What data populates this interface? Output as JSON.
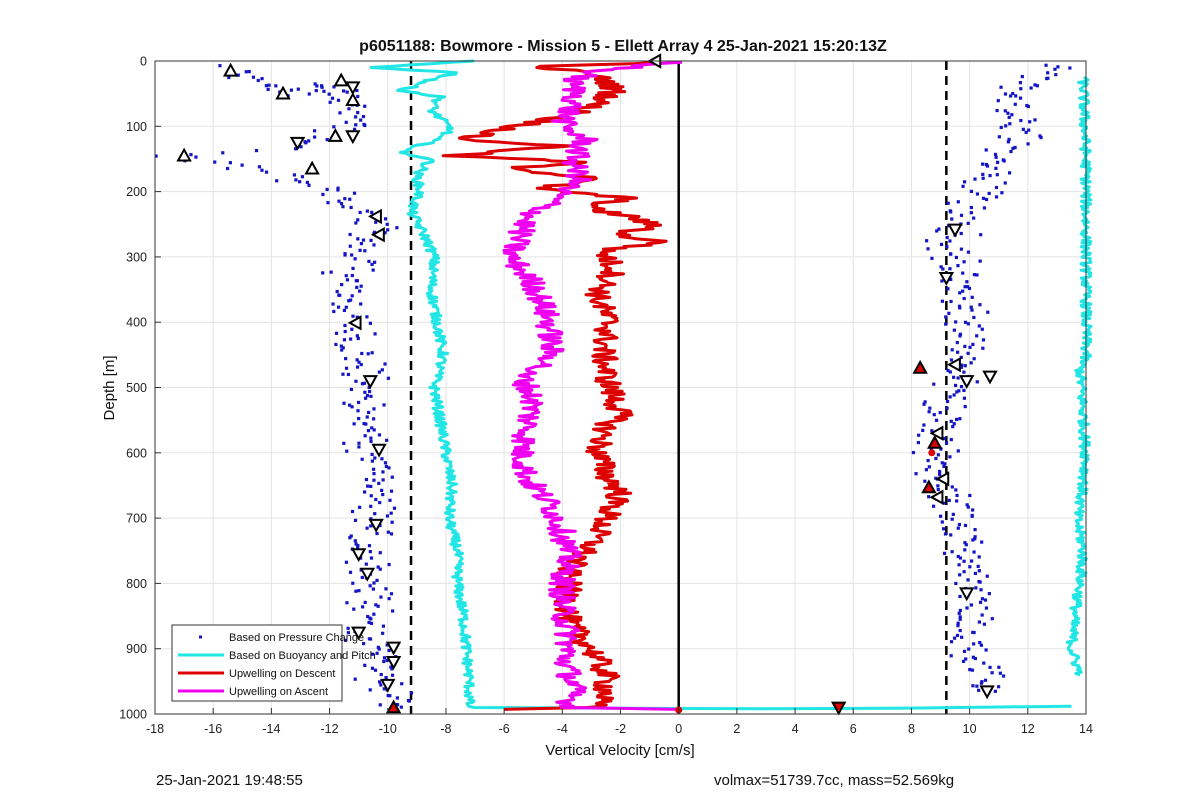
{
  "chart_data": {
    "type": "scatter",
    "title": "p6051188: Bowmore - Mission 5 - Ellett Array 4 25-Jan-2021 15:20:13Z",
    "xlabel": "Vertical Velocity [cm/s]",
    "ylabel": "Depth [m]",
    "xlim": [
      -18,
      14
    ],
    "ylim": [
      0,
      1000
    ],
    "y_reversed": true,
    "grid": true,
    "x_ticks": [
      "-18",
      "-16",
      "-14",
      "-12",
      "-10",
      "-8",
      "-6",
      "-4",
      "-2",
      "0",
      "2",
      "4",
      "6",
      "8",
      "10",
      "12",
      "14"
    ],
    "y_ticks": [
      "0",
      "100",
      "200",
      "300",
      "400",
      "500",
      "600",
      "700",
      "800",
      "900",
      "1000"
    ],
    "legend_position": "bottom-left",
    "reference_lines": [
      {
        "x": -9.2,
        "style": "dashed"
      },
      {
        "x": 0,
        "style": "solid"
      },
      {
        "x": 9.2,
        "style": "dashed"
      }
    ],
    "series": [
      {
        "name": "Based on Pressure Change",
        "style": "points",
        "color": "#1515c8",
        "descent": [
          [
            -15.6,
            10
          ],
          [
            -14.3,
            35
          ],
          [
            -13.2,
            55
          ],
          [
            -12,
            35
          ],
          [
            -11.4,
            60
          ],
          [
            -11.2,
            100
          ],
          [
            -12.8,
            130
          ],
          [
            -17.2,
            145
          ],
          [
            -16,
            150
          ],
          [
            -14.5,
            165
          ],
          [
            -13,
            180
          ],
          [
            -12,
            200
          ],
          [
            -11.2,
            225
          ],
          [
            -10.8,
            240
          ],
          [
            -10.3,
            260
          ],
          [
            -10.6,
            270
          ],
          [
            -11.2,
            300
          ],
          [
            -11.5,
            350
          ],
          [
            -11.2,
            400
          ],
          [
            -10.9,
            450
          ],
          [
            -10.8,
            500
          ],
          [
            -10.8,
            550
          ],
          [
            -10.5,
            600
          ],
          [
            -10.4,
            650
          ],
          [
            -10.5,
            700
          ],
          [
            -10.7,
            750
          ],
          [
            -10.6,
            800
          ],
          [
            -10.8,
            850
          ],
          [
            -10.6,
            900
          ],
          [
            -10.1,
            950
          ],
          [
            -9.8,
            995
          ]
        ],
        "ascent": [
          [
            12.9,
            5
          ],
          [
            12.4,
            25
          ],
          [
            11.8,
            45
          ],
          [
            11.2,
            65
          ],
          [
            11.5,
            90
          ],
          [
            11.9,
            110
          ],
          [
            11.2,
            140
          ],
          [
            10.6,
            180
          ],
          [
            10.1,
            220
          ],
          [
            9.6,
            255
          ],
          [
            9.4,
            280
          ],
          [
            9.5,
            320
          ],
          [
            9.9,
            360
          ],
          [
            9.9,
            400
          ],
          [
            9.8,
            440
          ],
          [
            9.7,
            470
          ],
          [
            9.4,
            520
          ],
          [
            9.1,
            560
          ],
          [
            8.8,
            600
          ],
          [
            9.0,
            640
          ],
          [
            9.3,
            680
          ],
          [
            9.6,
            720
          ],
          [
            9.9,
            760
          ],
          [
            10.2,
            800
          ],
          [
            10.0,
            850
          ],
          [
            10.1,
            900
          ],
          [
            10.4,
            940
          ],
          [
            10.6,
            965
          ]
        ]
      },
      {
        "name": "Based on Buoyancy and Pitch",
        "style": "line",
        "color": "#22e6e6",
        "descent": [
          [
            -7.2,
            0
          ],
          [
            -10.5,
            10
          ],
          [
            -7.6,
            18
          ],
          [
            -8.6,
            30
          ],
          [
            -9.5,
            45
          ],
          [
            -8.2,
            55
          ],
          [
            -8.5,
            75
          ],
          [
            -7.8,
            105
          ],
          [
            -8.6,
            125
          ],
          [
            -9.6,
            140
          ],
          [
            -8.5,
            150
          ],
          [
            -9,
            175
          ],
          [
            -8.9,
            200
          ],
          [
            -9.2,
            230
          ],
          [
            -8.7,
            270
          ],
          [
            -8.4,
            300
          ],
          [
            -8.5,
            350
          ],
          [
            -8.3,
            400
          ],
          [
            -8.1,
            450
          ],
          [
            -8.4,
            500
          ],
          [
            -8.2,
            550
          ],
          [
            -8.0,
            600
          ],
          [
            -7.8,
            650
          ],
          [
            -7.9,
            700
          ],
          [
            -7.6,
            750
          ],
          [
            -7.6,
            800
          ],
          [
            -7.4,
            850
          ],
          [
            -7.3,
            900
          ],
          [
            -7.2,
            950
          ],
          [
            -7.2,
            990
          ],
          [
            3.0,
            992
          ],
          [
            8.0,
            991
          ],
          [
            13.5,
            988
          ]
        ],
        "ascent": [
          [
            13.9,
            25
          ],
          [
            14,
            165
          ],
          [
            14,
            450
          ],
          [
            13.8,
            470
          ],
          [
            14,
            610
          ],
          [
            13.9,
            650
          ],
          [
            13.7,
            700
          ],
          [
            13.9,
            750
          ],
          [
            13.8,
            800
          ],
          [
            13.6,
            850
          ],
          [
            13.5,
            900
          ],
          [
            13.8,
            940
          ]
        ]
      },
      {
        "name": "Upwelling on Descent",
        "style": "line",
        "color": "#dc0000",
        "values": [
          [
            -0.3,
            2
          ],
          [
            -5,
            8
          ],
          [
            -3.2,
            18
          ],
          [
            -2.5,
            30
          ],
          [
            -2.2,
            45
          ],
          [
            -2.6,
            60
          ],
          [
            -3.5,
            80
          ],
          [
            -5.5,
            100
          ],
          [
            -7.5,
            120
          ],
          [
            -4,
            130
          ],
          [
            -7.8,
            145
          ],
          [
            -3.2,
            155
          ],
          [
            -6,
            165
          ],
          [
            -2.5,
            180
          ],
          [
            -5,
            195
          ],
          [
            -1.8,
            210
          ],
          [
            -3.2,
            225
          ],
          [
            -1.5,
            240
          ],
          [
            -0.8,
            255
          ],
          [
            -2.2,
            265
          ],
          [
            -0.5,
            278
          ],
          [
            -2.6,
            290
          ],
          [
            -2.2,
            320
          ],
          [
            -2.8,
            360
          ],
          [
            -2.4,
            400
          ],
          [
            -2.6,
            440
          ],
          [
            -2.5,
            480
          ],
          [
            -2.2,
            520
          ],
          [
            -2.0,
            540
          ],
          [
            -2.5,
            560
          ],
          [
            -2.8,
            600
          ],
          [
            -2.4,
            640
          ],
          [
            -2.0,
            660
          ],
          [
            -2.5,
            700
          ],
          [
            -3.0,
            740
          ],
          [
            -3.8,
            780
          ],
          [
            -3.8,
            820
          ],
          [
            -3.8,
            860
          ],
          [
            -3.0,
            900
          ],
          [
            -2.5,
            940
          ],
          [
            -2.5,
            970
          ],
          [
            -3.0,
            990
          ],
          [
            -6,
            993
          ]
        ]
      },
      {
        "name": "Upwelling on Ascent",
        "style": "line",
        "color": "#f000f0",
        "values": [
          [
            -0.1,
            2
          ],
          [
            -2.8,
            15
          ],
          [
            -3.7,
            30
          ],
          [
            -3.5,
            50
          ],
          [
            -3.7,
            70
          ],
          [
            -4,
            100
          ],
          [
            -3.2,
            120
          ],
          [
            -3.5,
            140
          ],
          [
            -3.6,
            160
          ],
          [
            -3.4,
            180
          ],
          [
            -4,
            200
          ],
          [
            -4.5,
            220
          ],
          [
            -5.2,
            240
          ],
          [
            -5.4,
            260
          ],
          [
            -5.8,
            300
          ],
          [
            -5.0,
            340
          ],
          [
            -4.6,
            380
          ],
          [
            -4.4,
            420
          ],
          [
            -4.4,
            460
          ],
          [
            -5.4,
            480
          ],
          [
            -5.0,
            520
          ],
          [
            -5.2,
            560
          ],
          [
            -5.4,
            600
          ],
          [
            -5.2,
            640
          ],
          [
            -4.4,
            680
          ],
          [
            -4.0,
            720
          ],
          [
            -3.8,
            760
          ],
          [
            -4.0,
            800
          ],
          [
            -4.0,
            840
          ],
          [
            -3.8,
            880
          ],
          [
            -3.9,
            920
          ],
          [
            -3.6,
            960
          ],
          [
            -3.8,
            990
          ],
          [
            0,
            993
          ]
        ]
      }
    ],
    "markers": [
      {
        "shape": "up",
        "fill": "none",
        "points": [
          [
            -15.4,
            15
          ],
          [
            -13.6,
            50
          ],
          [
            -12.6,
            165
          ],
          [
            -11.6,
            30
          ],
          [
            -17,
            145
          ],
          [
            -11.8,
            115
          ],
          [
            -11.2,
            60
          ]
        ]
      },
      {
        "shape": "down",
        "fill": "none",
        "points": [
          [
            -11.2,
            40
          ],
          [
            -13.1,
            125
          ],
          [
            -11.2,
            115
          ],
          [
            -10.6,
            490
          ],
          [
            -10.3,
            595
          ],
          [
            -10.4,
            710
          ],
          [
            -11,
            755
          ],
          [
            -10.7,
            785
          ],
          [
            -11,
            875
          ],
          [
            -9.8,
            898
          ],
          [
            -9.8,
            920
          ],
          [
            -10.0,
            955
          ],
          [
            9.9,
            490
          ],
          [
            10.7,
            483
          ],
          [
            9.9,
            815
          ],
          [
            10.6,
            965
          ],
          [
            9.5,
            258
          ],
          [
            9.2,
            332
          ]
        ]
      },
      {
        "shape": "left",
        "fill": "none",
        "points": [
          [
            -0.8,
            0
          ],
          [
            -10.4,
            238
          ],
          [
            -10.3,
            266
          ],
          [
            -11.1,
            401
          ],
          [
            9.5,
            465
          ],
          [
            8.9,
            570
          ],
          [
            9.1,
            640
          ],
          [
            8.9,
            668
          ]
        ]
      },
      {
        "shape": "up",
        "fill": "#dc0000",
        "points": [
          [
            8.3,
            470
          ],
          [
            8.8,
            585
          ],
          [
            8.6,
            653
          ],
          [
            -9.8,
            990
          ]
        ]
      },
      {
        "shape": "down",
        "fill": "#dc0000",
        "points": [
          [
            5.5,
            990
          ]
        ]
      },
      {
        "shape": "dot",
        "fill": "#dc0000",
        "points": [
          [
            0,
            994
          ],
          [
            8.7,
            600
          ]
        ]
      }
    ]
  },
  "footer": {
    "timestamp": "25-Jan-2021 19:48:55",
    "stats": "volmax=51739.7cc, mass=52.569kg"
  }
}
